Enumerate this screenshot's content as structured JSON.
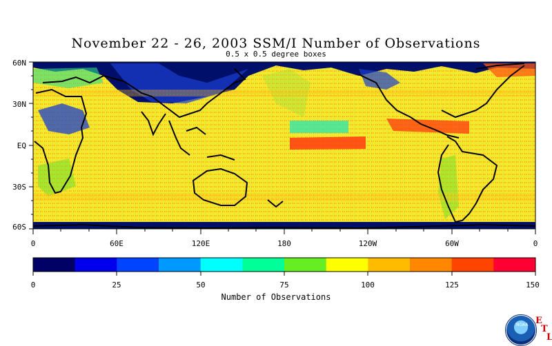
{
  "header": {
    "title": "November 22 - 26, 2003 SSM/I Number of Observations",
    "subtitle": "0.5 x 0.5 degree boxes"
  },
  "map": {
    "lat_labels": [
      "60N",
      "30N",
      "EQ",
      "30S",
      "60S"
    ],
    "lat_values": [
      60,
      30,
      0,
      -30,
      -60
    ],
    "lon_labels": [
      "0",
      "60E",
      "120E",
      "180",
      "120W",
      "60W",
      "0"
    ],
    "lon_values": [
      0,
      60,
      120,
      180,
      240,
      300,
      360
    ],
    "lat_range": [
      -60,
      60
    ],
    "lon_range": [
      0,
      360
    ]
  },
  "colorbar": {
    "label": "Number of Observations",
    "tick_labels": [
      "0",
      "25",
      "50",
      "75",
      "100",
      "125",
      "150"
    ],
    "tick_values": [
      0,
      25,
      50,
      75,
      100,
      125,
      150
    ],
    "range": [
      0,
      150
    ],
    "colors": [
      "#000066",
      "#0000ee",
      "#0044ff",
      "#0099ff",
      "#00ffff",
      "#00ff99",
      "#66ee22",
      "#ffff00",
      "#ffbb00",
      "#ff8800",
      "#ff4400",
      "#ff0033"
    ]
  },
  "logo": {
    "label": "NOAA",
    "letters": [
      "E",
      "T",
      "L"
    ]
  }
}
